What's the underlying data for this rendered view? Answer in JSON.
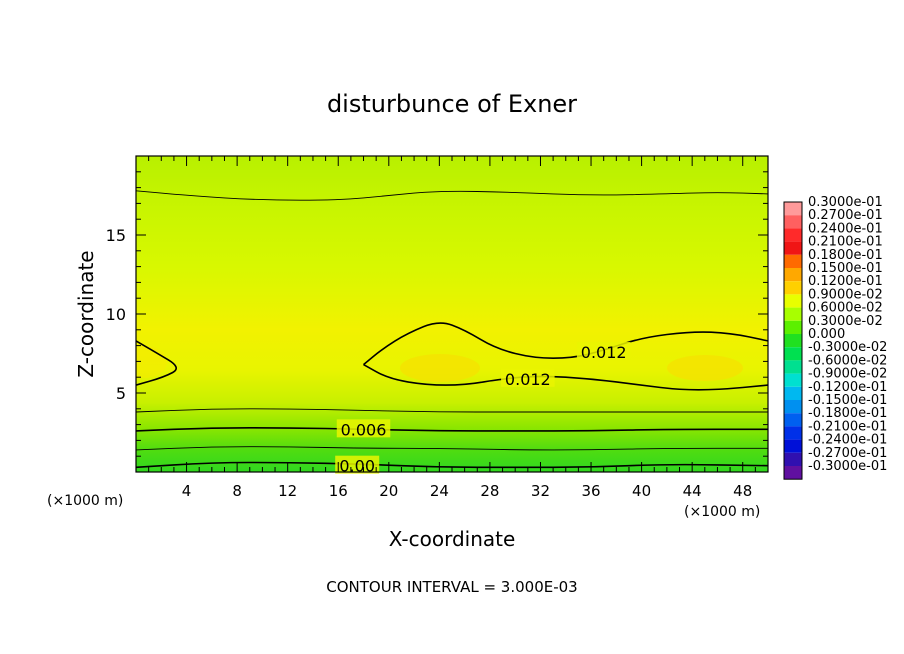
{
  "chart_data": {
    "type": "heatmap",
    "title": "disturbunce of Exner",
    "xlabel": "X-coordinate",
    "ylabel": "Z-coordinate",
    "x_unit_left": "(×1000 m)",
    "x_unit_right": "(×1000 m)",
    "footer": "CONTOUR INTERVAL = 3.000E-03",
    "xlim": [
      0,
      50
    ],
    "ylim": [
      0,
      20
    ],
    "xticks": [
      4,
      8,
      12,
      16,
      20,
      24,
      28,
      32,
      36,
      40,
      44,
      48
    ],
    "yticks": [
      5,
      10,
      15
    ],
    "grid": false,
    "legend_position": "right",
    "contour_labels": [
      {
        "text": "0.012",
        "x": 37,
        "y": 7.6
      },
      {
        "text": "0.012",
        "x": 31,
        "y": 5.9
      },
      {
        "text": "0.006",
        "x": 18,
        "y": 2.7
      },
      {
        "text": "0.00",
        "x": 17.5,
        "y": 0.4
      }
    ],
    "colorbar": {
      "labels": [
        "0.3000e-01",
        "0.2700e-01",
        "0.2400e-01",
        "0.2100e-01",
        "0.1800e-01",
        "0.1500e-01",
        "0.1200e-01",
        "0.9000e-02",
        "0.6000e-02",
        "0.3000e-02",
        "0.000",
        "-0.3000e-02",
        "-0.6000e-02",
        "-0.9000e-02",
        "-0.1200e-01",
        "-0.1500e-01",
        "-0.1800e-01",
        "-0.2100e-01",
        "-0.2400e-01",
        "-0.2700e-01",
        "-0.3000e-01"
      ],
      "colors": [
        "#ff9a9a",
        "#ff6060",
        "#ff2a2a",
        "#f01515",
        "#ff6a00",
        "#ffa800",
        "#ffd000",
        "#e8ff00",
        "#a8ff00",
        "#5cf000",
        "#20e020",
        "#00e050",
        "#00e090",
        "#00e0d0",
        "#00b8f0",
        "#0090f0",
        "#0060f0",
        "#0030e8",
        "#0010d8",
        "#3010b0",
        "#6010a0"
      ]
    },
    "contour_levels": [
      {
        "value": 0.012,
        "segments": [
          [
            [
              0,
              8.3
            ],
            [
              1.5,
              7.6
            ],
            [
              3.6,
              6.6
            ],
            [
              2.2,
              6.0
            ],
            [
              0,
              5.5
            ]
          ],
          [
            [
              18,
              6.8
            ],
            [
              19.5,
              7.8
            ],
            [
              21.5,
              8.8
            ],
            [
              24,
              9.6
            ],
            [
              26,
              9.0
            ],
            [
              28.5,
              7.8
            ],
            [
              31.5,
              7.2
            ],
            [
              34.5,
              7.2
            ],
            [
              37,
              7.7
            ],
            [
              40,
              8.5
            ],
            [
              44,
              8.9
            ],
            [
              47,
              8.8
            ],
            [
              50,
              8.3
            ]
          ],
          [
            [
              18,
              6.8
            ],
            [
              20,
              5.9
            ],
            [
              23,
              5.5
            ],
            [
              26,
              5.5
            ],
            [
              29,
              5.9
            ],
            [
              32,
              6.1
            ],
            [
              36,
              5.9
            ],
            [
              40,
              5.5
            ],
            [
              43,
              5.2
            ],
            [
              46,
              5.2
            ],
            [
              50,
              5.5
            ]
          ]
        ]
      },
      {
        "value": 0.015,
        "segments": [
          [
            [
              0,
              17.8
            ],
            [
              4,
              17.5
            ],
            [
              10,
              17.2
            ],
            [
              16,
              17.2
            ],
            [
              20,
              17.5
            ],
            [
              24,
              17.8
            ],
            [
              30,
              17.7
            ],
            [
              36,
              17.5
            ],
            [
              42,
              17.6
            ],
            [
              46,
              17.7
            ],
            [
              50,
              17.6
            ]
          ]
        ]
      },
      {
        "value": 0.009,
        "segments": [
          [
            [
              0,
              3.8
            ],
            [
              6,
              4.0
            ],
            [
              12,
              4.0
            ],
            [
              18,
              3.9
            ],
            [
              24,
              3.8
            ],
            [
              30,
              3.8
            ],
            [
              36,
              3.8
            ],
            [
              42,
              3.8
            ],
            [
              50,
              3.8
            ]
          ]
        ]
      },
      {
        "value": 0.006,
        "segments": [
          [
            [
              0,
              2.6
            ],
            [
              6,
              2.8
            ],
            [
              12,
              2.8
            ],
            [
              18,
              2.7
            ],
            [
              24,
              2.6
            ],
            [
              30,
              2.6
            ],
            [
              36,
              2.6
            ],
            [
              42,
              2.7
            ],
            [
              50,
              2.7
            ]
          ]
        ]
      },
      {
        "value": 0.003,
        "segments": [
          [
            [
              0,
              1.4
            ],
            [
              6,
              1.6
            ],
            [
              12,
              1.6
            ],
            [
              18,
              1.5
            ],
            [
              24,
              1.5
            ],
            [
              30,
              1.4
            ],
            [
              36,
              1.4
            ],
            [
              42,
              1.5
            ],
            [
              50,
              1.5
            ]
          ]
        ]
      },
      {
        "value": 0.0,
        "segments": [
          [
            [
              0,
              0.3
            ],
            [
              6,
              0.6
            ],
            [
              12,
              0.6
            ],
            [
              18,
              0.5
            ],
            [
              24,
              0.3
            ],
            [
              30,
              0.3
            ],
            [
              36,
              0.3
            ],
            [
              42,
              0.5
            ],
            [
              50,
              0.4
            ]
          ]
        ]
      }
    ]
  }
}
